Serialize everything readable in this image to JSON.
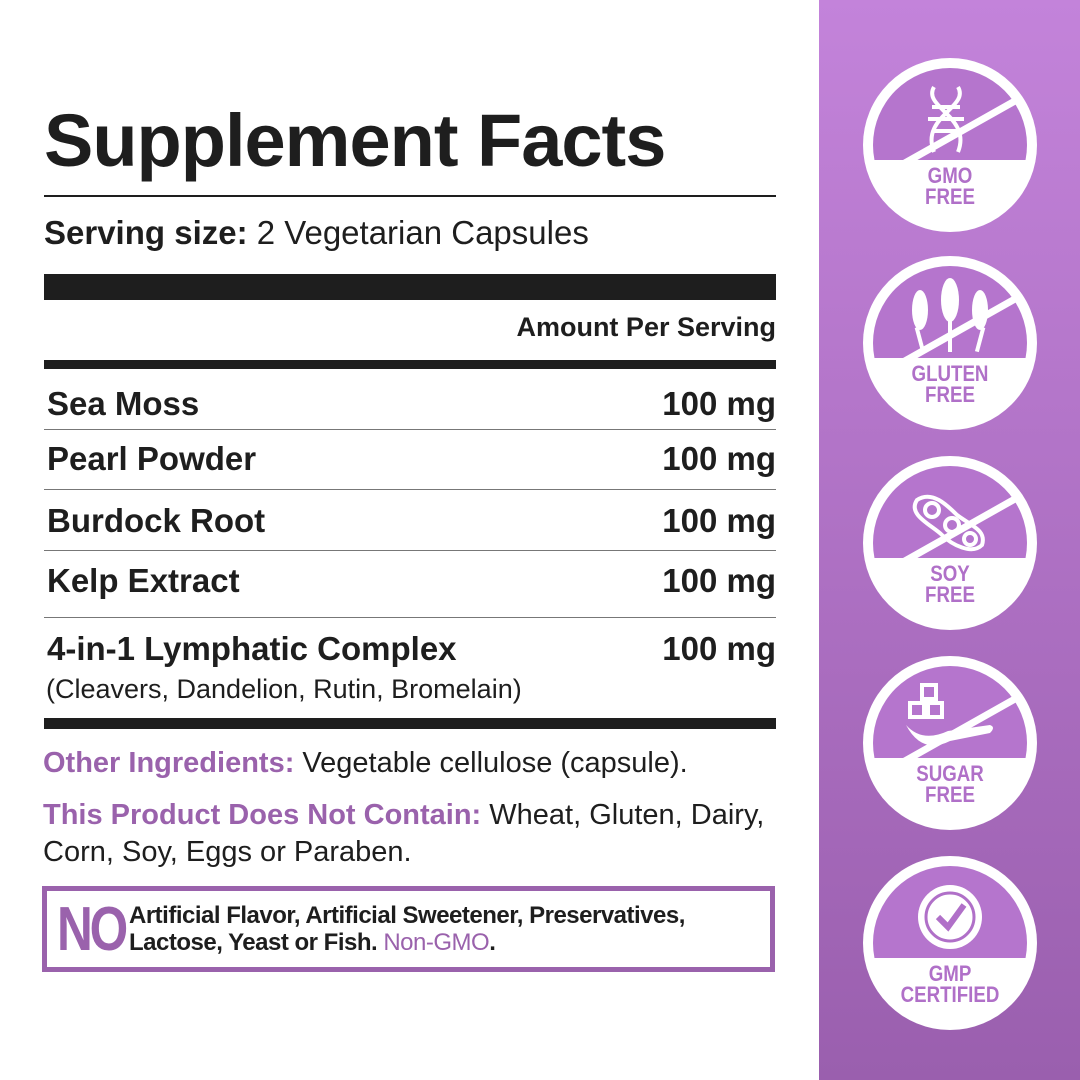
{
  "title": "Supplement Facts",
  "serving": {
    "label": "Serving size:",
    "value": "2 Vegetarian Capsules"
  },
  "amount_header": "Amount Per Serving",
  "ingredients": [
    {
      "name": "Sea Moss",
      "amount": "100 mg"
    },
    {
      "name": "Pearl Powder",
      "amount": "100 mg"
    },
    {
      "name": "Burdock Root",
      "amount": "100 mg"
    },
    {
      "name": "Kelp Extract",
      "amount": "100 mg"
    },
    {
      "name": "4-in-1 Lymphatic Complex",
      "amount": "100 mg",
      "detail": "(Cleavers, Dandelion, Rutin, Bromelain)"
    }
  ],
  "other": {
    "label": "Other Ingredients:",
    "value": "Vegetable cellulose (capsule)."
  },
  "not_contain": {
    "label": "This Product Does Not Contain:",
    "value": "Wheat, Gluten, Dairy, Corn, Soy, Eggs or Paraben."
  },
  "no_box": {
    "no": "NO",
    "line1": "Artificial Flavor, Artificial Sweetener, Preservatives,",
    "line2": "Lactose, Yeast or Fish.",
    "highlight": "Non-GMO",
    "end": "."
  },
  "badges": [
    {
      "icon": "dna-icon",
      "line1": "GMO",
      "line2": "FREE"
    },
    {
      "icon": "wheat-icon",
      "line1": "GLUTEN",
      "line2": "FREE"
    },
    {
      "icon": "soybean-icon",
      "line1": "SOY",
      "line2": "FREE"
    },
    {
      "icon": "sugar-spoon-icon",
      "line1": "SUGAR",
      "line2": "FREE"
    },
    {
      "icon": "check-seal-icon",
      "line1": "GMP",
      "line2": "CERTIFIED"
    }
  ],
  "colors": {
    "accent": "#9a62ac",
    "sidebar_top": "#c383da",
    "sidebar_bottom": "#9a5fae",
    "text": "#1e1e1e"
  }
}
